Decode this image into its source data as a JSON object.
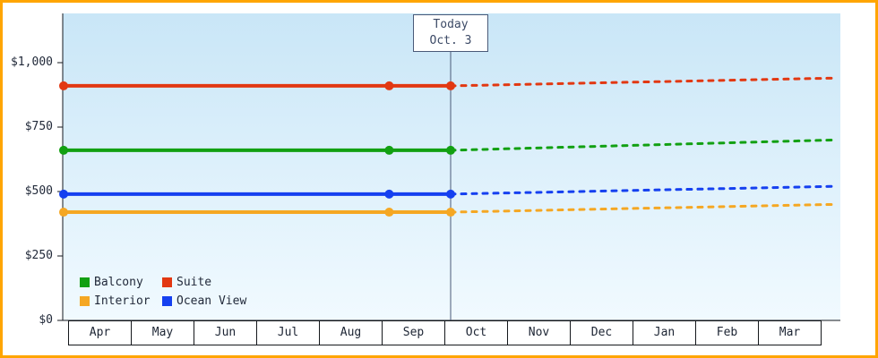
{
  "colors": {
    "frame_border": "#ffa500",
    "plot_bg_top": "#c9e6f7",
    "plot_bg_bottom": "#f1faff",
    "axis": "#14181f",
    "today_line": "#4a5a78",
    "text": "#222a3a"
  },
  "chart_data": {
    "type": "line",
    "x_categories": [
      "Apr",
      "May",
      "Jun",
      "Jul",
      "Aug",
      "Sep",
      "Oct",
      "Nov",
      "Dec",
      "Jan",
      "Feb",
      "Mar"
    ],
    "y_tick_values": [
      0,
      250,
      500,
      750,
      1000
    ],
    "y_tick_labels": [
      "$0",
      "$250",
      "$500",
      "$750",
      "$1,000"
    ],
    "ylim": [
      0,
      1190
    ],
    "grid": false,
    "today": {
      "label": [
        "Today",
        "Oct. 3"
      ],
      "month": "Oct",
      "month_index": 6,
      "month_fraction": 0.1
    },
    "series": [
      {
        "name": "Suite",
        "color": "#e23812",
        "historical_value": 910,
        "forecast_end_value": 940,
        "forecast_style": "dashed",
        "dot_points": [
          "Apr",
          "Sep",
          "Today"
        ]
      },
      {
        "name": "Balcony",
        "color": "#12a012",
        "historical_value": 660,
        "forecast_end_value": 700,
        "forecast_style": "dashed",
        "dot_points": [
          "Apr",
          "Sep",
          "Today"
        ]
      },
      {
        "name": "Ocean View",
        "color": "#1540f0",
        "historical_value": 490,
        "forecast_end_value": 520,
        "forecast_style": "dashed",
        "dot_points": [
          "Apr",
          "Sep",
          "Today"
        ]
      },
      {
        "name": "Interior",
        "color": "#f5a723",
        "historical_value": 420,
        "forecast_end_value": 450,
        "forecast_style": "dashed",
        "dot_points": [
          "Apr",
          "Sep",
          "Today"
        ]
      }
    ],
    "legend": {
      "position": "bottom-left-inside",
      "items": [
        {
          "label": "Balcony",
          "color": "#12a012"
        },
        {
          "label": "Suite",
          "color": "#e23812"
        },
        {
          "label": "Interior",
          "color": "#f5a723"
        },
        {
          "label": "Ocean View",
          "color": "#1540f0"
        }
      ]
    }
  }
}
